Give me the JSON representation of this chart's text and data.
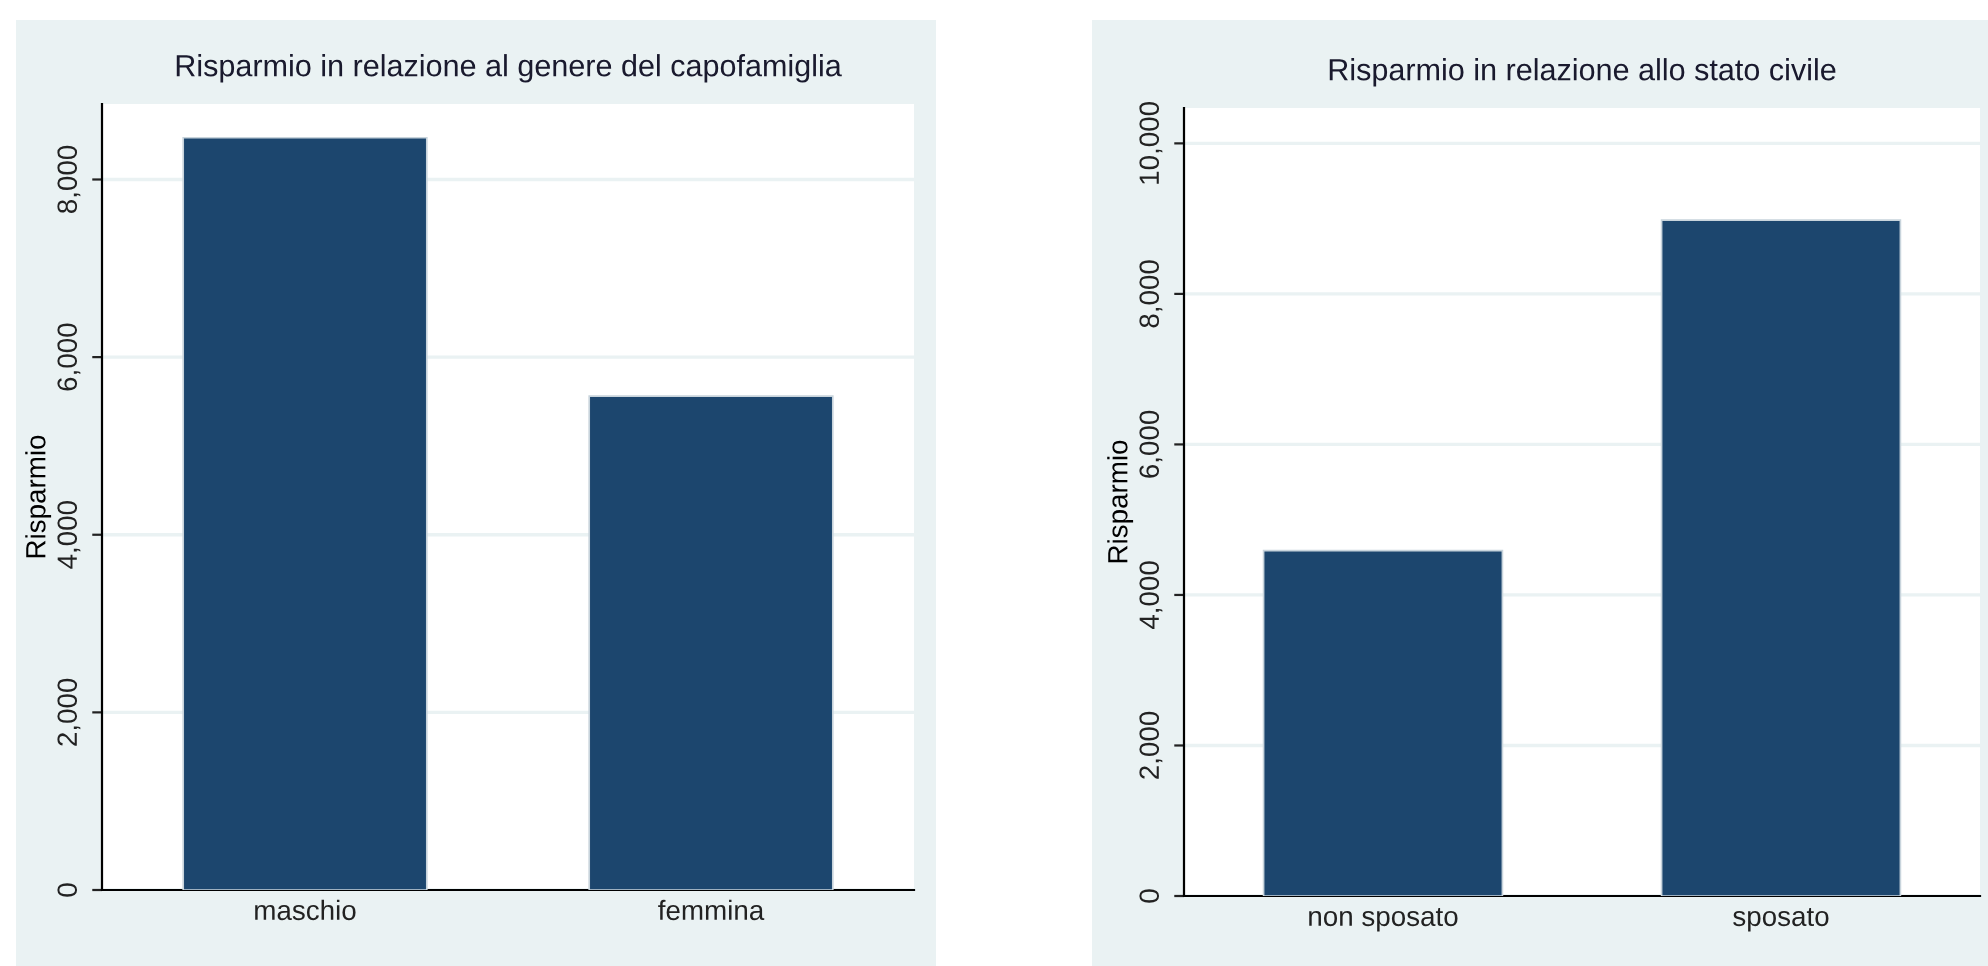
{
  "chart_data": [
    {
      "type": "bar",
      "title": "Risparmio in relazione al genere del capofamiglia",
      "ylabel": "Risparmio",
      "categories": [
        "maschio",
        "femmina"
      ],
      "values": [
        8470,
        5560
      ],
      "color": "#1c466e",
      "ylim": [
        0,
        8850
      ],
      "yticks": [
        {
          "value": 0,
          "label": "0"
        },
        {
          "value": 2000,
          "label": "2,000"
        },
        {
          "value": 4000,
          "label": "4,000"
        },
        {
          "value": 6000,
          "label": "6,000"
        },
        {
          "value": 8000,
          "label": "8,000"
        }
      ],
      "grid": "y"
    },
    {
      "type": "bar",
      "title": "Risparmio in relazione allo stato civile",
      "ylabel": "Risparmio",
      "categories": [
        "non sposato",
        "sposato"
      ],
      "values": [
        4590,
        8980
      ],
      "color": "#1c466e",
      "ylim": [
        0,
        10470
      ],
      "yticks": [
        {
          "value": 0,
          "label": "0"
        },
        {
          "value": 2000,
          "label": "2,000"
        },
        {
          "value": 4000,
          "label": "4,000"
        },
        {
          "value": 6000,
          "label": "6,000"
        },
        {
          "value": 8000,
          "label": "8,000"
        },
        {
          "value": 10000,
          "label": "10,000"
        }
      ],
      "grid": "y"
    }
  ]
}
